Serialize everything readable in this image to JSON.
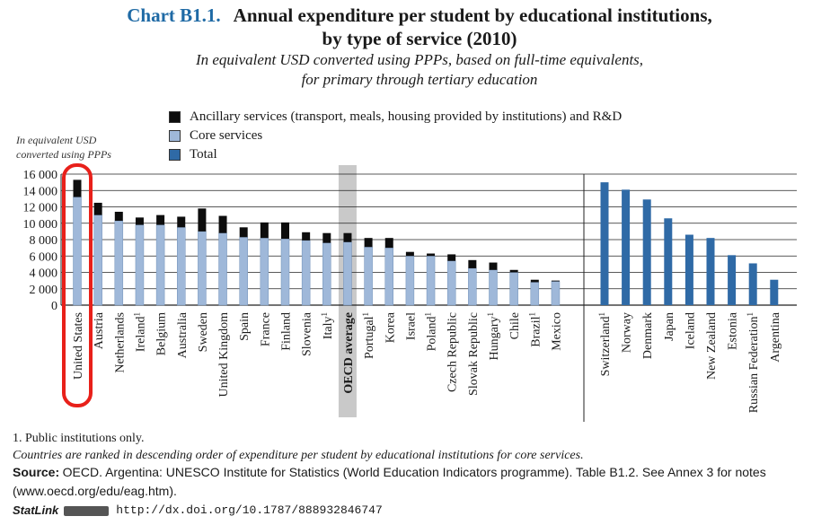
{
  "header": {
    "chart_number": "Chart B1.1.",
    "title_line1": "Annual expenditure per student by educational institutions,",
    "title_line2": "by type of service (2010)",
    "subtitle_line1": "In equivalent USD converted using PPPs, based on full-time equivalents,",
    "subtitle_line2": "for primary through tertiary education"
  },
  "y_unit_label": {
    "line1": "In equivalent USD",
    "line2": "converted using PPPs"
  },
  "legend": [
    {
      "label": "Ancillary services (transport, meals, housing provided by institutions) and R&D",
      "color": "#0d0d0d"
    },
    {
      "label": "Core services",
      "color": "#9fb8d9"
    },
    {
      "label": "Total",
      "color": "#2f6aa6"
    }
  ],
  "chart_data": {
    "type": "bar",
    "stacked": true,
    "ylim": [
      0,
      16000
    ],
    "yticks": [
      "0",
      "2 000",
      "4 000",
      "6 000",
      "8 000",
      "10 000",
      "12 000",
      "14 000",
      "16 000"
    ],
    "grid": true,
    "colors": {
      "ancillary": "#0d0d0d",
      "core": "#9fb8d9",
      "total": "#2f6aa6",
      "oecd_band": "#c9c9c9",
      "highlight": "#e8201a"
    },
    "groups": [
      {
        "series": [
          "core",
          "ancillary"
        ],
        "countries": [
          {
            "name": "United States",
            "core": 13200,
            "ancillary": 2100,
            "highlight": true
          },
          {
            "name": "Austria",
            "core": 11000,
            "ancillary": 1500
          },
          {
            "name": "Netherlands",
            "core": 10300,
            "ancillary": 1100
          },
          {
            "name": "Ireland",
            "footnote": "1",
            "core": 9800,
            "ancillary": 900
          },
          {
            "name": "Belgium",
            "core": 9800,
            "ancillary": 1200
          },
          {
            "name": "Australia",
            "core": 9500,
            "ancillary": 1300
          },
          {
            "name": "Sweden",
            "core": 9000,
            "ancillary": 2800
          },
          {
            "name": "United Kingdom",
            "core": 8800,
            "ancillary": 2100
          },
          {
            "name": "Spain",
            "core": 8300,
            "ancillary": 1200
          },
          {
            "name": "France",
            "core": 8200,
            "ancillary": 1900
          },
          {
            "name": "Finland",
            "core": 8100,
            "ancillary": 2000
          },
          {
            "name": "Slovenia",
            "core": 7900,
            "ancillary": 1000
          },
          {
            "name": "Italy",
            "footnote": "1",
            "core": 7600,
            "ancillary": 1200
          },
          {
            "name": "OECD average",
            "core": 7700,
            "ancillary": 1100,
            "oecd": true
          },
          {
            "name": "Portugal",
            "footnote": "1",
            "core": 7100,
            "ancillary": 1100
          },
          {
            "name": "Korea",
            "core": 7000,
            "ancillary": 1200
          },
          {
            "name": "Israel",
            "core": 6000,
            "ancillary": 500
          },
          {
            "name": "Poland",
            "footnote": "1",
            "core": 6000,
            "ancillary": 300
          },
          {
            "name": "Czech Republic",
            "core": 5400,
            "ancillary": 800
          },
          {
            "name": "Slovak Republic",
            "core": 4500,
            "ancillary": 1000
          },
          {
            "name": "Hungary",
            "footnote": "1",
            "core": 4300,
            "ancillary": 900
          },
          {
            "name": "Chile",
            "core": 4000,
            "ancillary": 300
          },
          {
            "name": "Brazil",
            "footnote": "1",
            "core": 2800,
            "ancillary": 300
          },
          {
            "name": "Mexico",
            "core": 2900,
            "ancillary": 100
          }
        ]
      },
      {
        "series": [
          "total"
        ],
        "countries": [
          {
            "name": "Switzerland",
            "footnote": "1",
            "total": 15000
          },
          {
            "name": "Norway",
            "total": 14100
          },
          {
            "name": "Denmark",
            "total": 12900
          },
          {
            "name": "Japan",
            "total": 10600
          },
          {
            "name": "Iceland",
            "total": 8600
          },
          {
            "name": "New Zealand",
            "total": 8200
          },
          {
            "name": "Estonia",
            "total": 6100
          },
          {
            "name": "Russian Federation",
            "footnote": "1",
            "total": 5100
          },
          {
            "name": "Argentina",
            "total": 3100
          }
        ]
      }
    ]
  },
  "footnotes": {
    "note1": "1. Public institutions only.",
    "ranking_note": "Countries are ranked in descending order of expenditure per student by educational institutions for core services.",
    "source_label": "Source:",
    "source_text": "OECD. Argentina: UNESCO Institute for Statistics (World Education Indicators programme). Table B1.2. See Annex 3 for notes (www.oecd.org/edu/eag.htm).",
    "statlink_label": "StatLink",
    "statlink_url": "http://dx.doi.org/10.1787/888932846747"
  }
}
